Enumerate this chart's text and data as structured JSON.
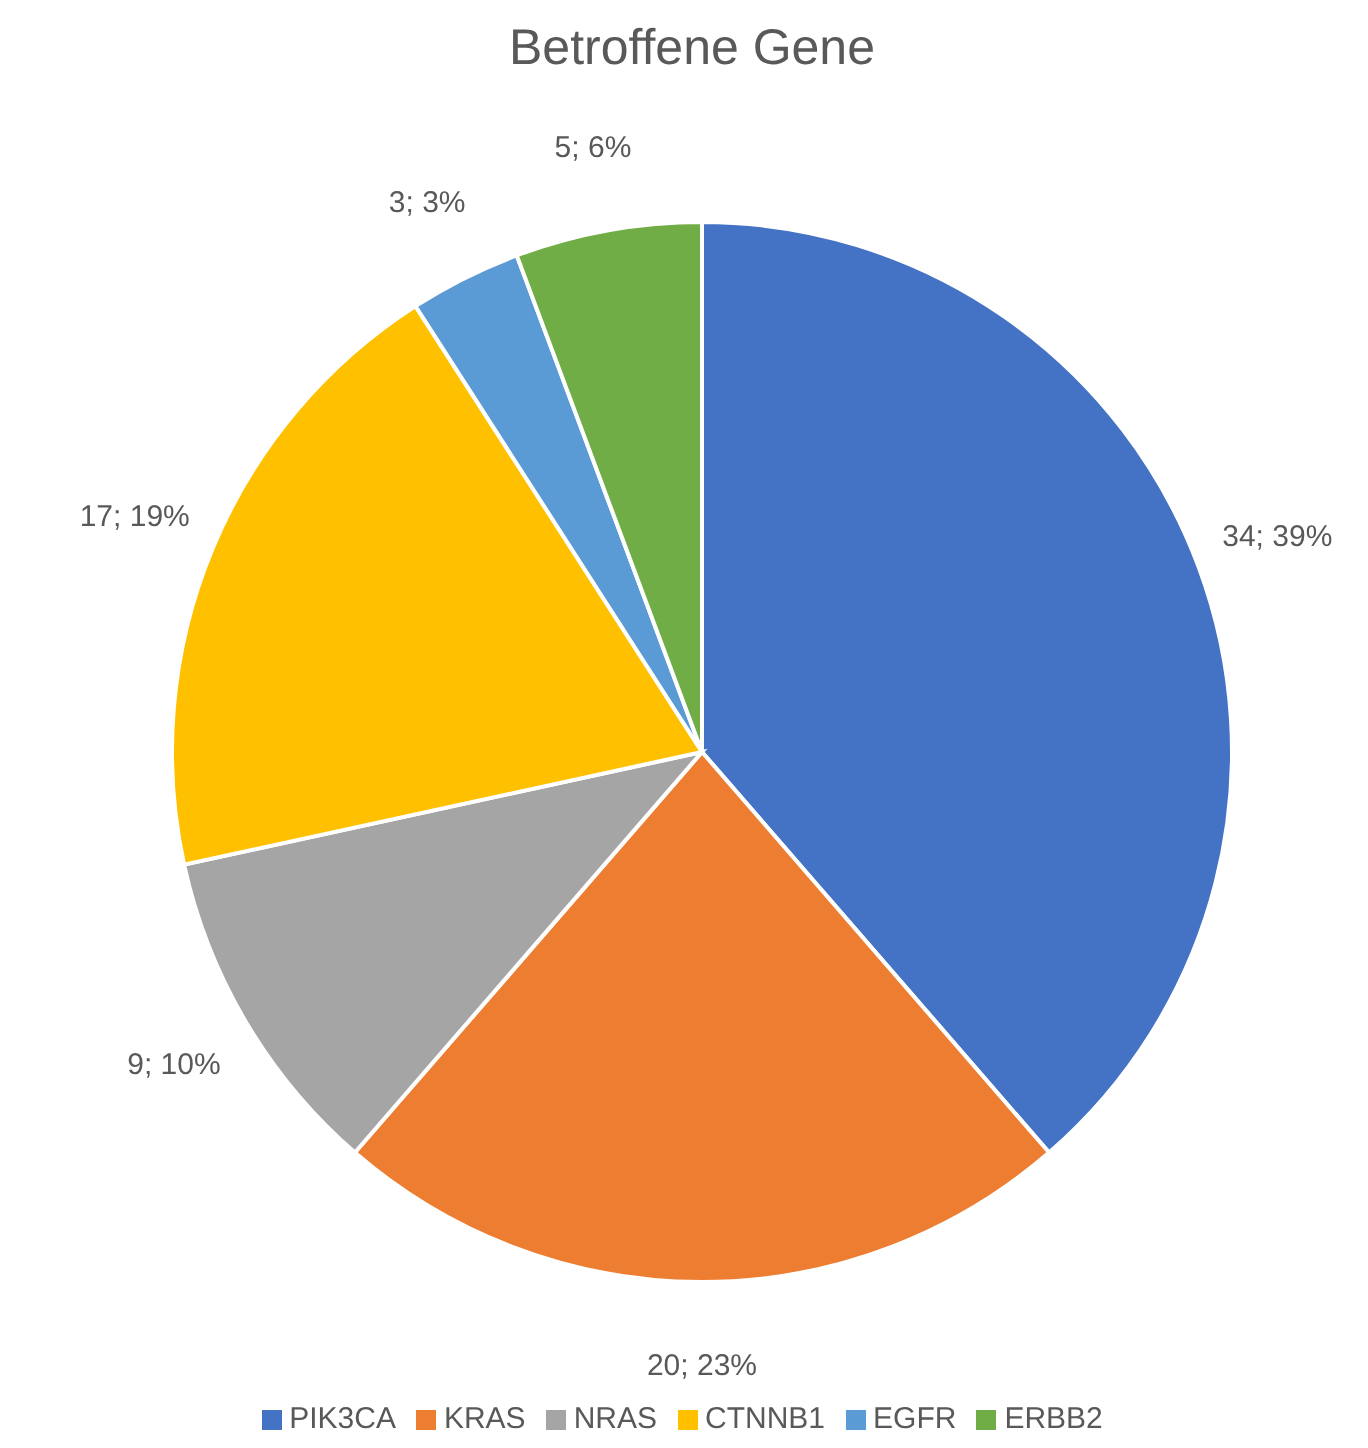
{
  "chart_data": {
    "type": "pie",
    "title": "Betroffene Gene",
    "categories": [
      "PIK3CA",
      "KRAS",
      "NRAS",
      "CTNNB1",
      "EGFR",
      "ERBB2"
    ],
    "values": [
      34,
      20,
      9,
      17,
      3,
      5
    ],
    "colors": [
      "#4472c4",
      "#ed7d31",
      "#a5a5a5",
      "#ffc000",
      "#5b9bd5",
      "#70ad47"
    ],
    "value_labels": [
      "34; 39%",
      "20; 23%",
      "9; 10%",
      "17; 19%",
      "3; 3%",
      "5; 6%"
    ],
    "legend": "bottom"
  }
}
